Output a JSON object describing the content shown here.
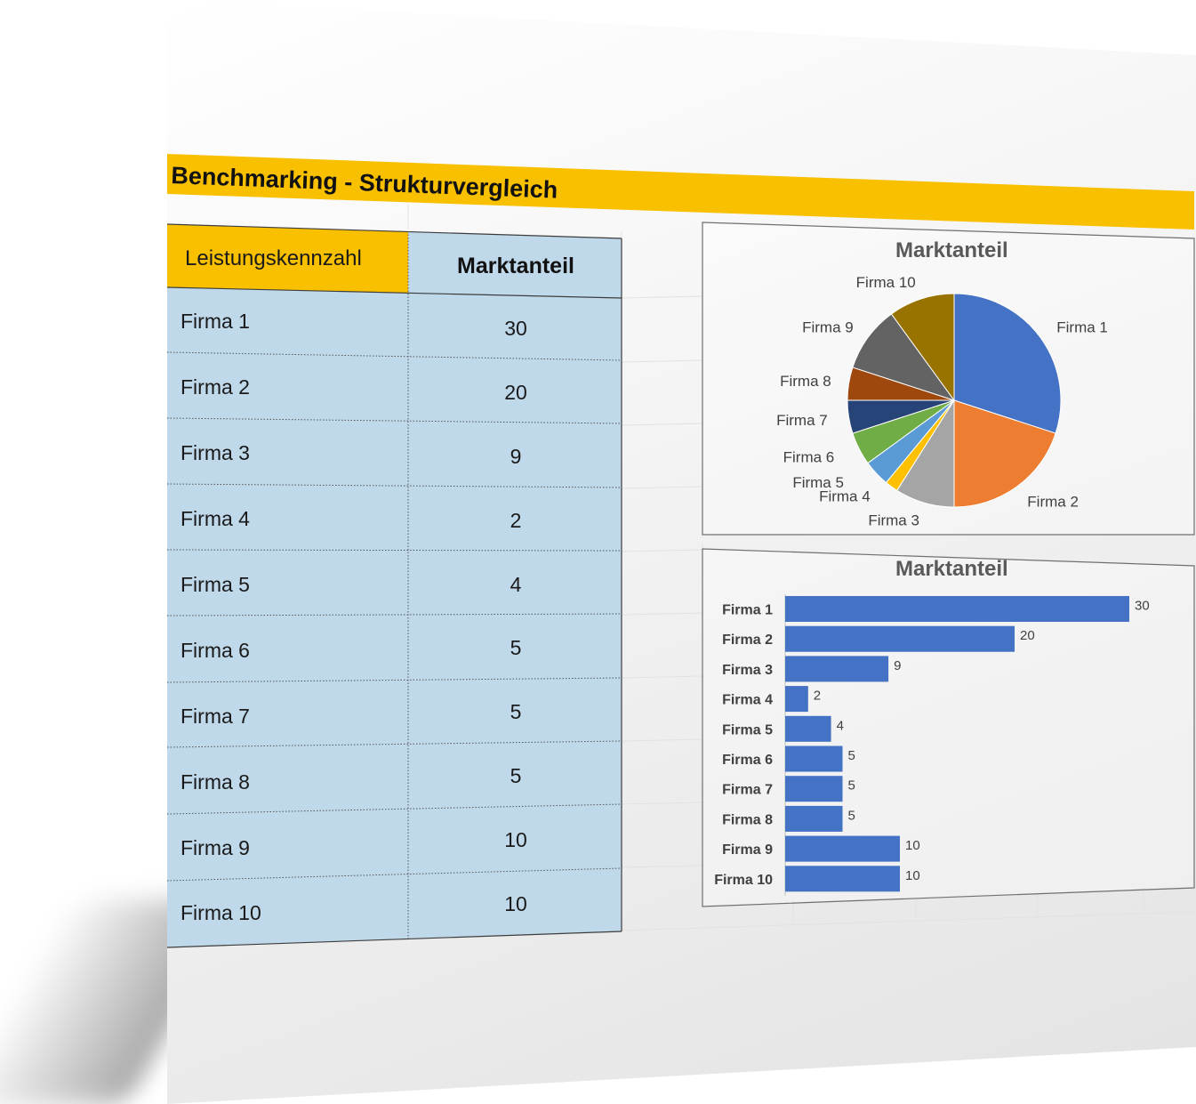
{
  "sheet_title": "Benchmarking - Strukturvergleich",
  "table": {
    "header_label": "Leistungskennzahl",
    "header_value": "Marktanteil",
    "rows": [
      {
        "label": "Firma 1",
        "value": "30"
      },
      {
        "label": "Firma 2",
        "value": "20"
      },
      {
        "label": "Firma 3",
        "value": "9"
      },
      {
        "label": "Firma 4",
        "value": "2"
      },
      {
        "label": "Firma 5",
        "value": "4"
      },
      {
        "label": "Firma 6",
        "value": "5"
      },
      {
        "label": "Firma 7",
        "value": "5"
      },
      {
        "label": "Firma 8",
        "value": "5"
      },
      {
        "label": "Firma 9",
        "value": "10"
      },
      {
        "label": "Firma 10",
        "value": "10"
      }
    ]
  },
  "colors": {
    "accent": "#f9c000",
    "table_fill": "#bfd8ea",
    "bar": "#4472c4"
  },
  "chart_data": [
    {
      "type": "pie",
      "title": "Marktanteil",
      "categories": [
        "Firma 1",
        "Firma 2",
        "Firma 3",
        "Firma 4",
        "Firma 5",
        "Firma 6",
        "Firma 7",
        "Firma 8",
        "Firma 9",
        "Firma 10"
      ],
      "values": [
        30,
        20,
        9,
        2,
        4,
        5,
        5,
        5,
        10,
        10
      ],
      "colors": [
        "#4472c4",
        "#ed7d31",
        "#a5a5a5",
        "#ffc000",
        "#5b9bd5",
        "#70ad47",
        "#264478",
        "#9e480e",
        "#636363",
        "#997300"
      ],
      "legend": "none",
      "data_labels": "category"
    },
    {
      "type": "bar",
      "orientation": "horizontal",
      "title": "Marktanteil",
      "categories": [
        "Firma 1",
        "Firma 2",
        "Firma 3",
        "Firma 4",
        "Firma 5",
        "Firma 6",
        "Firma 7",
        "Firma 8",
        "Firma 9",
        "Firma 10"
      ],
      "values": [
        30,
        20,
        9,
        2,
        4,
        5,
        5,
        5,
        10,
        10
      ],
      "xlim": [
        0,
        30
      ],
      "grid": false,
      "legend": "none",
      "data_labels": "value"
    }
  ]
}
